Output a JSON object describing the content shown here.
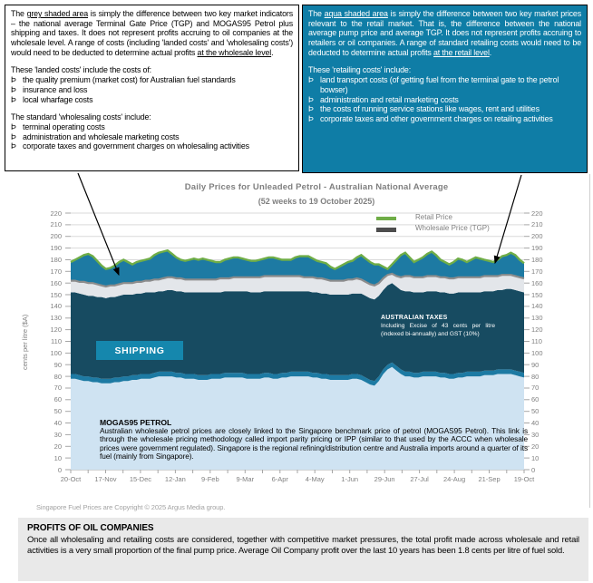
{
  "left_note": {
    "paragraph": [
      {
        "t": "The "
      },
      {
        "t": "grey shaded area",
        "u": true
      },
      {
        "t": " is simply the difference between two key market indicators – the national average Terminal Gate Price (TGP) and MOGAS95 Petrol plus shipping and taxes. It does not represent profits accruing to oil companies at the wholesale level. A range of costs (including 'landed costs' and 'wholesaling costs') would need to be deducted to determine actual profits "
      },
      {
        "t": "at the wholesale level",
        "u": true
      },
      {
        "t": "."
      }
    ],
    "landed_heading": "These 'landed costs' include the costs of:",
    "landed_items": [
      "the quality premium (market cost) for Australian fuel standards",
      "insurance and loss",
      "local wharfage costs"
    ],
    "wholesaling_heading": "The standard 'wholesaling costs' include:",
    "wholesaling_items": [
      "terminal operating costs",
      "administration and wholesale marketing costs",
      "corporate taxes and government charges on wholesaling activities"
    ],
    "bullet": "Þ"
  },
  "right_note": {
    "paragraph": [
      {
        "t": "The "
      },
      {
        "t": "aqua shaded area",
        "u": true
      },
      {
        "t": " is simply the difference between two key market prices relevant to the retail market. That is, the difference between the national average pump price and average TGP. It does not represent profits accruing to retailers or oil companies. A range of standard retailing costs would need to be deducted to determine actual profits "
      },
      {
        "t": "at the retail level",
        "u": true
      },
      {
        "t": "."
      }
    ],
    "retailing_heading": "These 'retailing costs' include:",
    "retailing_items": [
      "land transport costs (of getting fuel from the terminal gate to the petrol bowser)",
      "administration and retail marketing costs",
      "the costs of running service stations like wages, rent and utilities",
      "corporate taxes and other government charges on retailing activities"
    ],
    "bullet": "Þ"
  },
  "chart_data": {
    "type": "area",
    "title": "Daily Prices for Unleaded Petrol - Australian National Average",
    "subtitle": "(52 weeks to 19 October 2025)",
    "ylabel": "cents per litre ($A)",
    "ylim": [
      0,
      220
    ],
    "ytick_step": 10,
    "grid": true,
    "legend_position": "top-right-inside",
    "x_labels": [
      "20-Oct",
      "17-Nov",
      "15-Dec",
      "12-Jan",
      "9-Feb",
      "9-Mar",
      "6-Apr",
      "4-May",
      "1-Jun",
      "29-Jun",
      "27-Jul",
      "24-Aug",
      "21-Sep",
      "19-Oct"
    ],
    "legend": [
      {
        "label": "Retail Price",
        "color": "#6fad47"
      },
      {
        "label": "Wholesale Price (TGP)",
        "color": "#4d4d4d"
      }
    ],
    "shipping_offset": 4,
    "series": {
      "retail": [
        178,
        180,
        182,
        184,
        185,
        183,
        179,
        175,
        172,
        173,
        175,
        178,
        180,
        178,
        176,
        178,
        179,
        180,
        181,
        184,
        186,
        187,
        188,
        185,
        182,
        180,
        179,
        180,
        181,
        180,
        181,
        180,
        179,
        178,
        178,
        180,
        181,
        182,
        182,
        181,
        180,
        179,
        179,
        180,
        181,
        182,
        182,
        181,
        180,
        180,
        180,
        182,
        183,
        183,
        183,
        181,
        179,
        178,
        177,
        174,
        172,
        174,
        176,
        178,
        179,
        182,
        184,
        181,
        178,
        176,
        176,
        174,
        172,
        176,
        180,
        184,
        186,
        182,
        178,
        180,
        182,
        185,
        187,
        184,
        180,
        178,
        176,
        178,
        181,
        180,
        178,
        180,
        182,
        181,
        180,
        179,
        178,
        180,
        183,
        184,
        186,
        184,
        180,
        177
      ],
      "tgp": [
        162,
        162,
        161,
        161,
        160,
        160,
        159,
        158,
        157,
        158,
        158,
        159,
        160,
        160,
        160,
        161,
        161,
        162,
        162,
        163,
        163,
        164,
        165,
        165,
        164,
        164,
        163,
        163,
        163,
        163,
        163,
        163,
        163,
        163,
        164,
        164,
        164,
        165,
        165,
        165,
        165,
        165,
        165,
        165,
        166,
        166,
        166,
        166,
        166,
        166,
        166,
        166,
        166,
        165,
        165,
        165,
        164,
        164,
        163,
        162,
        162,
        162,
        162,
        163,
        163,
        164,
        163,
        161,
        159,
        158,
        160,
        164,
        167,
        168,
        166,
        165,
        166,
        166,
        165,
        165,
        165,
        166,
        166,
        166,
        165,
        165,
        164,
        164,
        165,
        165,
        165,
        165,
        165,
        165,
        166,
        166,
        166,
        166,
        167,
        167,
        167,
        166,
        165,
        164
      ],
      "tax_top": [
        152,
        152,
        151,
        150,
        149,
        149,
        148,
        148,
        147,
        148,
        148,
        149,
        150,
        150,
        150,
        151,
        151,
        152,
        152,
        152,
        153,
        153,
        154,
        154,
        153,
        153,
        152,
        152,
        152,
        152,
        152,
        152,
        152,
        152,
        152,
        153,
        153,
        153,
        153,
        153,
        153,
        152,
        152,
        152,
        153,
        153,
        153,
        153,
        153,
        153,
        153,
        153,
        153,
        153,
        153,
        152,
        152,
        151,
        151,
        150,
        150,
        150,
        150,
        150,
        151,
        151,
        151,
        149,
        147,
        146,
        149,
        154,
        158,
        160,
        157,
        154,
        153,
        153,
        152,
        152,
        152,
        153,
        153,
        153,
        152,
        152,
        151,
        151,
        152,
        152,
        152,
        152,
        152,
        152,
        153,
        153,
        153,
        154,
        154,
        155,
        155,
        154,
        153,
        152
      ],
      "mogas95": [
        78,
        78,
        77,
        76,
        76,
        75,
        75,
        74,
        74,
        74,
        75,
        75,
        76,
        76,
        77,
        77,
        78,
        78,
        78,
        79,
        80,
        80,
        80,
        80,
        79,
        79,
        78,
        78,
        78,
        77,
        77,
        77,
        78,
        78,
        78,
        79,
        79,
        79,
        79,
        79,
        78,
        78,
        78,
        78,
        79,
        79,
        78,
        78,
        79,
        79,
        80,
        80,
        80,
        80,
        80,
        79,
        79,
        78,
        78,
        77,
        77,
        77,
        77,
        77,
        78,
        78,
        77,
        75,
        73,
        72,
        76,
        82,
        86,
        88,
        85,
        82,
        80,
        80,
        79,
        79,
        80,
        80,
        80,
        80,
        79,
        79,
        78,
        78,
        79,
        79,
        80,
        80,
        80,
        80,
        81,
        81,
        81,
        82,
        82,
        82,
        82,
        81,
        80,
        79
      ]
    },
    "colors": {
      "mogas_area": "#cfe3f2",
      "shipping_band": "#1d7aa3",
      "tax_area": "#174b61",
      "wholesale_margin_area": "#e3e6ea",
      "retail_margin_area": "#1d7aa3",
      "retail_line": "#6fad47",
      "tgp_line": "#8c8c8c",
      "gridline": "#d9d9d9",
      "axis": "#a6a6a6"
    },
    "annotations": {
      "shipping_label": "SHIPPING",
      "taxes_title": "AUSTRALIAN TAXES",
      "taxes_body": "Including Excise of 43 cents per litre (indexed bi-annually) and GST (10%)",
      "mogas_title": "MOGAS95 PETROL",
      "mogas_body": "Australian wholesale petrol prices are closely linked to the Singapore benchmark price of petrol (MOGAS95 Petrol). This link is through the wholesale pricing methodology called import parity pricing or IPP (similar to that used by the ACCC when wholesale prices were government regulated). Singapore is the regional refining/distribution centre and Australia imports around a quarter of its fuel (mainly from Singapore)."
    }
  },
  "copyright": "Singapore Fuel Prices are Copyright © 2025 Argus Media group.",
  "profits": {
    "title": "PROFITS OF OIL COMPANIES",
    "body": "Once all wholesaling and retailing costs are considered, together with competitive market pressures, the total profit made across wholesale and retail activities is a very small proportion of the final pump price. Average Oil Company profit over the last 10 years has been 1.8 cents per litre of fuel sold."
  }
}
